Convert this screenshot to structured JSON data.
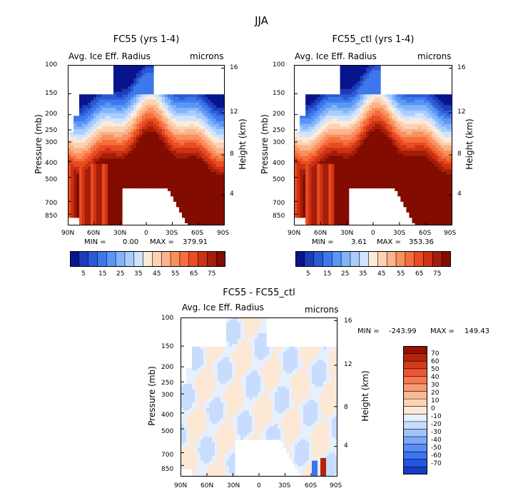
{
  "page_title": "JJA",
  "palettes": {
    "sequential": [
      "#08148c",
      "#1e3cb9",
      "#2c5ad7",
      "#3c78eb",
      "#5a96f5",
      "#82b4fa",
      "#aacdfc",
      "#d0e4fd",
      "#fdebd9",
      "#fcd2b4",
      "#fbb48c",
      "#f9915f",
      "#f56e3c",
      "#e94c23",
      "#cd3214",
      "#a51e08",
      "#820c00"
    ],
    "diverging": [
      "#00008c",
      "#0a1eaa",
      "#143cc3",
      "#2356e1",
      "#3c73f5",
      "#5a8cfa",
      "#7ba8fb",
      "#a0c3fd",
      "#c8dcfd",
      "#e6f0fe",
      "#fde8d6",
      "#fdd3b5",
      "#fcb996",
      "#fa9a73",
      "#f57850",
      "#ec5630",
      "#d23c19",
      "#b4230a",
      "#960f00"
    ]
  },
  "chart_data": [
    {
      "id": "fc55",
      "type": "heatmap",
      "title": "FC55 (yrs 1-4)",
      "field_label": "Avg. Ice Eff. Radius",
      "units": "microns",
      "xlabel": "",
      "ylabel": "Pressure (mb)",
      "y2label": "Height (km)",
      "x_ticks": [
        "90N",
        "60N",
        "30N",
        "0",
        "30S",
        "60S",
        "90S"
      ],
      "y_ticks": [
        "100",
        "150",
        "200",
        "250",
        "300",
        "400",
        "500",
        "700",
        "850"
      ],
      "y2_ticks": [
        "16",
        "12",
        "8",
        "4"
      ],
      "stats": {
        "min_label": "MIN =",
        "min": "0.00",
        "max_label": "MAX =",
        "max": "379.91"
      },
      "colorbar_labels": [
        "5",
        "15",
        "25",
        "35",
        "45",
        "55",
        "65",
        "75"
      ]
    },
    {
      "id": "fc55_ctl",
      "type": "heatmap",
      "title": "FC55_ctl (yrs 1-4)",
      "field_label": "Avg. Ice Eff. Radius",
      "units": "microns",
      "xlabel": "",
      "ylabel": "Pressure (mb)",
      "y2label": "Height (km)",
      "x_ticks": [
        "90N",
        "60N",
        "30N",
        "0",
        "30S",
        "60S",
        "90S"
      ],
      "y_ticks": [
        "100",
        "150",
        "200",
        "250",
        "300",
        "400",
        "500",
        "700",
        "850"
      ],
      "y2_ticks": [
        "16",
        "12",
        "8",
        "4"
      ],
      "stats": {
        "min_label": "MIN =",
        "min": "3.61",
        "max_label": "MAX =",
        "max": "353.36"
      },
      "colorbar_labels": [
        "5",
        "15",
        "25",
        "35",
        "45",
        "55",
        "65",
        "75"
      ]
    },
    {
      "id": "diff",
      "type": "heatmap",
      "title": "FC55 - FC55_ctl",
      "field_label": "Avg. Ice Eff. Radius",
      "units": "microns",
      "xlabel": "",
      "ylabel": "Pressure (mb)",
      "y2label": "Height (km)",
      "x_ticks": [
        "90N",
        "60N",
        "30N",
        "0",
        "30S",
        "60S",
        "90S"
      ],
      "y_ticks": [
        "100",
        "150",
        "200",
        "250",
        "300",
        "400",
        "500",
        "700",
        "850"
      ],
      "y2_ticks": [
        "16",
        "12",
        "8",
        "4"
      ],
      "stats": {
        "min_label": "MIN =",
        "min": "-243.99",
        "max_label": "MAX =",
        "max": "149.43"
      },
      "colorbar_labels": [
        "70",
        "60",
        "50",
        "40",
        "30",
        "20",
        "10",
        "0",
        "-10",
        "-20",
        "-30",
        "-40",
        "-50",
        "-60",
        "-70"
      ]
    }
  ]
}
